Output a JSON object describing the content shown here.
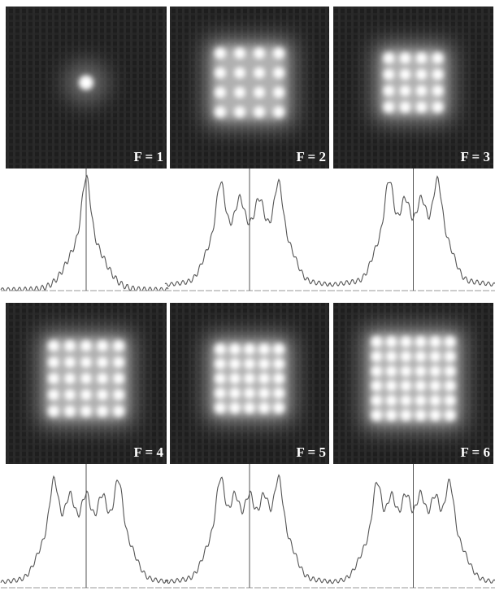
{
  "panels": [
    {
      "label": "F = 1"
    },
    {
      "label": "F = 2"
    },
    {
      "label": "F = 3"
    },
    {
      "label": "F = 4"
    },
    {
      "label": "F = 5"
    },
    {
      "label": "F = 6"
    }
  ]
}
